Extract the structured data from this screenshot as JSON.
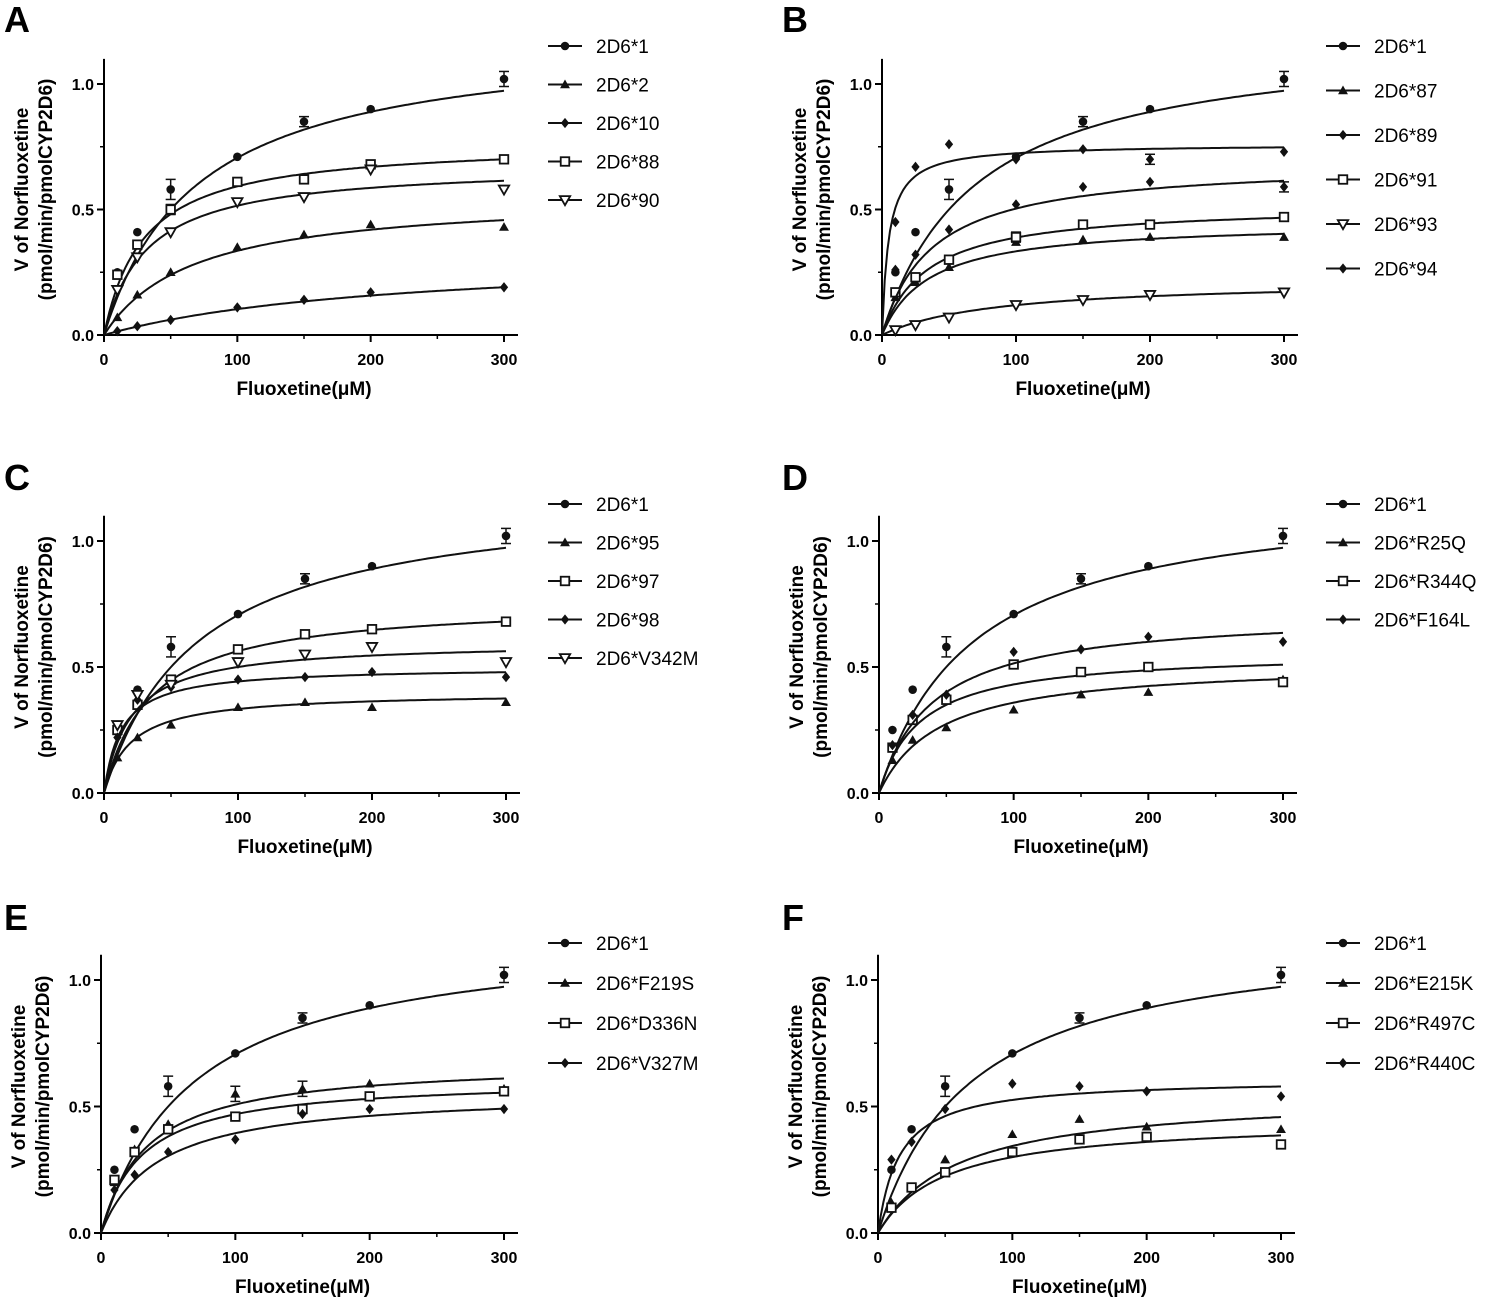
{
  "figure": {
    "x_tick_labels": [
      "0",
      "100",
      "200",
      "300"
    ],
    "y_tick_labels": [
      "0.0",
      "0.5",
      "1.0"
    ],
    "xlabel": "Fluoxetine(μM)",
    "ylabel_line1": "V of Norfluoxetine",
    "ylabel_line2": "(pmol/min/pmolCYP2D6)"
  },
  "chart_data": [
    {
      "type": "scatter",
      "panel": "A",
      "xlabel": "Fluoxetine(μM)",
      "ylabel": "V of Norfluoxetine (pmol/min/pmolCYP2D6)",
      "xlim": [
        0,
        300
      ],
      "ylim": [
        0,
        1.1
      ],
      "x": [
        10,
        25,
        50,
        100,
        150,
        200,
        300
      ],
      "series": [
        {
          "name": "2D6*1",
          "marker": "circle",
          "values": [
            0.25,
            0.41,
            0.58,
            0.71,
            0.85,
            0.9,
            1.02
          ],
          "errors": [
            0,
            0,
            0.04,
            0,
            0.02,
            0,
            0.03
          ],
          "vmax": 1.2,
          "km": 70
        },
        {
          "name": "2D6*2",
          "marker": "triangle",
          "values": [
            0.07,
            0.16,
            0.25,
            0.35,
            0.4,
            0.44,
            0.43
          ],
          "errors": [
            0,
            0,
            0,
            0,
            0,
            0,
            0
          ],
          "vmax": 0.56,
          "km": 67
        },
        {
          "name": "2D6*10",
          "marker": "diamond",
          "values": [
            0.015,
            0.035,
            0.06,
            0.11,
            0.14,
            0.17,
            0.19
          ],
          "errors": [
            0,
            0,
            0,
            0,
            0,
            0,
            0
          ],
          "vmax": 0.33,
          "km": 220
        },
        {
          "name": "2D6*88",
          "marker": "square",
          "values": [
            0.24,
            0.36,
            0.5,
            0.61,
            0.62,
            0.68,
            0.7
          ],
          "errors": [
            0,
            0,
            0.02,
            0,
            0,
            0,
            0
          ],
          "vmax": 0.77,
          "km": 30
        },
        {
          "name": "2D6*90",
          "marker": "triangle-down",
          "values": [
            0.18,
            0.31,
            0.41,
            0.53,
            0.55,
            0.66,
            0.58
          ],
          "errors": [
            0,
            0,
            0,
            0,
            0,
            0,
            0
          ],
          "vmax": 0.68,
          "km": 32
        }
      ]
    },
    {
      "type": "scatter",
      "panel": "B",
      "xlabel": "Fluoxetine(μM)",
      "ylabel": "V of Norfluoxetine (pmol/min/pmolCYP2D6)",
      "xlim": [
        0,
        300
      ],
      "ylim": [
        0,
        1.1
      ],
      "x": [
        10,
        25,
        50,
        100,
        150,
        200,
        300
      ],
      "series": [
        {
          "name": "2D6*1",
          "marker": "circle",
          "values": [
            0.25,
            0.41,
            0.58,
            0.71,
            0.85,
            0.9,
            1.02
          ],
          "errors": [
            0,
            0,
            0.04,
            0,
            0.02,
            0,
            0.03
          ],
          "vmax": 1.2,
          "km": 70
        },
        {
          "name": "2D6*87",
          "marker": "triangle",
          "values": [
            0.15,
            0.21,
            0.27,
            0.37,
            0.38,
            0.39,
            0.39
          ],
          "errors": [
            0,
            0,
            0,
            0,
            0,
            0,
            0
          ],
          "vmax": 0.45,
          "km": 35
        },
        {
          "name": "2D6*89",
          "marker": "diamond",
          "values": [
            0.45,
            0.67,
            0.76,
            0.7,
            0.74,
            0.7,
            0.73
          ],
          "errors": [
            0,
            0,
            0,
            0,
            0,
            0.02,
            0
          ],
          "vmax": 0.76,
          "km": 5
        },
        {
          "name": "2D6*91",
          "marker": "square",
          "values": [
            0.17,
            0.23,
            0.3,
            0.39,
            0.44,
            0.44,
            0.47
          ],
          "errors": [
            0,
            0,
            0,
            0.02,
            0,
            0,
            0
          ],
          "vmax": 0.52,
          "km": 34
        },
        {
          "name": "2D6*93",
          "marker": "triangle-down",
          "values": [
            0.02,
            0.04,
            0.07,
            0.12,
            0.14,
            0.16,
            0.17
          ],
          "errors": [
            0,
            0,
            0,
            0,
            0,
            0,
            0
          ],
          "vmax": 0.22,
          "km": 85
        },
        {
          "name": "2D6*94",
          "marker": "diamond",
          "values": [
            0.26,
            0.32,
            0.42,
            0.52,
            0.59,
            0.61,
            0.59
          ],
          "errors": [
            0,
            0,
            0,
            0,
            0,
            0,
            0.02
          ],
          "vmax": 0.69,
          "km": 37
        }
      ]
    },
    {
      "type": "scatter",
      "panel": "C",
      "xlabel": "Fluoxetine(μM)",
      "ylabel": "V of Norfluoxetine (pmol/min/pmolCYP2D6)",
      "xlim": [
        0,
        300
      ],
      "ylim": [
        0,
        1.1
      ],
      "x": [
        10,
        25,
        50,
        100,
        150,
        200,
        300
      ],
      "series": [
        {
          "name": "2D6*1",
          "marker": "circle",
          "values": [
            0.25,
            0.41,
            0.58,
            0.71,
            0.85,
            0.9,
            1.02
          ],
          "errors": [
            0,
            0,
            0.04,
            0,
            0.02,
            0,
            0.03
          ],
          "vmax": 1.2,
          "km": 70
        },
        {
          "name": "2D6*95",
          "marker": "triangle",
          "values": [
            0.14,
            0.22,
            0.27,
            0.34,
            0.36,
            0.34,
            0.36
          ],
          "errors": [
            0,
            0,
            0,
            0,
            0,
            0,
            0
          ],
          "vmax": 0.4,
          "km": 20
        },
        {
          "name": "2D6*97",
          "marker": "square",
          "values": [
            0.25,
            0.35,
            0.45,
            0.57,
            0.63,
            0.65,
            0.68
          ],
          "errors": [
            0,
            0,
            0,
            0,
            0,
            0,
            0
          ],
          "vmax": 0.76,
          "km": 35
        },
        {
          "name": "2D6*98",
          "marker": "diamond",
          "values": [
            0.22,
            0.37,
            0.42,
            0.45,
            0.46,
            0.48,
            0.46
          ],
          "errors": [
            0,
            0,
            0,
            0,
            0,
            0,
            0
          ],
          "vmax": 0.5,
          "km": 13
        },
        {
          "name": "2D6*V342M",
          "marker": "triangle-down",
          "values": [
            0.27,
            0.39,
            0.43,
            0.52,
            0.55,
            0.58,
            0.52
          ],
          "errors": [
            0,
            0,
            0,
            0,
            0,
            0,
            0
          ],
          "vmax": 0.6,
          "km": 20
        }
      ]
    },
    {
      "type": "scatter",
      "panel": "D",
      "xlabel": "Fluoxetine(μM)",
      "ylabel": "V of Norfluoxetine (pmol/min/pmolCYP2D6)",
      "xlim": [
        0,
        300
      ],
      "ylim": [
        0,
        1.1
      ],
      "x": [
        10,
        25,
        50,
        100,
        150,
        200,
        300
      ],
      "series": [
        {
          "name": "2D6*1",
          "marker": "circle",
          "values": [
            0.25,
            0.41,
            0.58,
            0.71,
            0.85,
            0.9,
            1.02
          ],
          "errors": [
            0,
            0,
            0.04,
            0,
            0.02,
            0,
            0.03
          ],
          "vmax": 1.2,
          "km": 70
        },
        {
          "name": "2D6*R25Q",
          "marker": "triangle",
          "values": [
            0.13,
            0.21,
            0.26,
            0.33,
            0.39,
            0.4,
            0.45
          ],
          "errors": [
            0,
            0,
            0,
            0,
            0,
            0,
            0
          ],
          "vmax": 0.52,
          "km": 45
        },
        {
          "name": "2D6*R344Q",
          "marker": "square",
          "values": [
            0.18,
            0.29,
            0.37,
            0.51,
            0.48,
            0.5,
            0.44
          ],
          "errors": [
            0,
            0,
            0,
            0,
            0,
            0,
            0
          ],
          "vmax": 0.56,
          "km": 30
        },
        {
          "name": "2D6*F164L",
          "marker": "diamond",
          "values": [
            0.19,
            0.31,
            0.39,
            0.56,
            0.57,
            0.62,
            0.6
          ],
          "errors": [
            0,
            0,
            0,
            0,
            0,
            0,
            0
          ],
          "vmax": 0.72,
          "km": 40
        }
      ]
    },
    {
      "type": "scatter",
      "panel": "E",
      "xlabel": "Fluoxetine(μM)",
      "ylabel": "V of Norfluoxetine (pmol/min/pmolCYP2D6)",
      "xlim": [
        0,
        300
      ],
      "ylim": [
        0,
        1.1
      ],
      "x": [
        10,
        25,
        50,
        100,
        150,
        200,
        300
      ],
      "series": [
        {
          "name": "2D6*1",
          "marker": "circle",
          "values": [
            0.25,
            0.41,
            0.58,
            0.71,
            0.85,
            0.9,
            1.02
          ],
          "errors": [
            0,
            0,
            0.04,
            0,
            0.02,
            0,
            0.03
          ],
          "vmax": 1.2,
          "km": 70
        },
        {
          "name": "2D6*F219S",
          "marker": "triangle",
          "values": [
            0.2,
            0.33,
            0.43,
            0.55,
            0.57,
            0.59,
            0.57
          ],
          "errors": [
            0,
            0,
            0,
            0.03,
            0.03,
            0,
            0
          ],
          "vmax": 0.68,
          "km": 34
        },
        {
          "name": "2D6*D336N",
          "marker": "square",
          "values": [
            0.21,
            0.32,
            0.41,
            0.46,
            0.49,
            0.54,
            0.56
          ],
          "errors": [
            0,
            0,
            0,
            0,
            0,
            0,
            0
          ],
          "vmax": 0.61,
          "km": 30
        },
        {
          "name": "2D6*V327M",
          "marker": "diamond",
          "values": [
            0.17,
            0.23,
            0.32,
            0.37,
            0.47,
            0.49,
            0.49
          ],
          "errors": [
            0,
            0,
            0,
            0,
            0,
            0,
            0
          ],
          "vmax": 0.56,
          "km": 42
        }
      ]
    },
    {
      "type": "scatter",
      "panel": "F",
      "xlabel": "Fluoxetine(μM)",
      "ylabel": "V of Norfluoxetine (pmol/min/pmolCYP2D6)",
      "xlim": [
        0,
        300
      ],
      "ylim": [
        0,
        1.1
      ],
      "x": [
        10,
        25,
        50,
        100,
        150,
        200,
        300
      ],
      "series": [
        {
          "name": "2D6*1",
          "marker": "circle",
          "values": [
            0.25,
            0.41,
            0.58,
            0.71,
            0.85,
            0.9,
            1.02
          ],
          "errors": [
            0,
            0,
            0.04,
            0,
            0.02,
            0,
            0.03
          ],
          "vmax": 1.2,
          "km": 70
        },
        {
          "name": "2D6*E215K",
          "marker": "triangle",
          "values": [
            0.12,
            0.18,
            0.29,
            0.39,
            0.45,
            0.42,
            0.41
          ],
          "errors": [
            0,
            0,
            0,
            0,
            0,
            0,
            0
          ],
          "vmax": 0.55,
          "km": 60
        },
        {
          "name": "2D6*R497C",
          "marker": "square",
          "values": [
            0.1,
            0.18,
            0.24,
            0.32,
            0.37,
            0.38,
            0.35
          ],
          "errors": [
            0,
            0,
            0,
            0,
            0,
            0,
            0
          ],
          "vmax": 0.45,
          "km": 50
        },
        {
          "name": "2D6*R440C",
          "marker": "diamond",
          "values": [
            0.29,
            0.36,
            0.49,
            0.59,
            0.58,
            0.56,
            0.54
          ],
          "errors": [
            0,
            0,
            0,
            0,
            0,
            0,
            0
          ],
          "vmax": 0.61,
          "km": 16
        }
      ]
    }
  ]
}
